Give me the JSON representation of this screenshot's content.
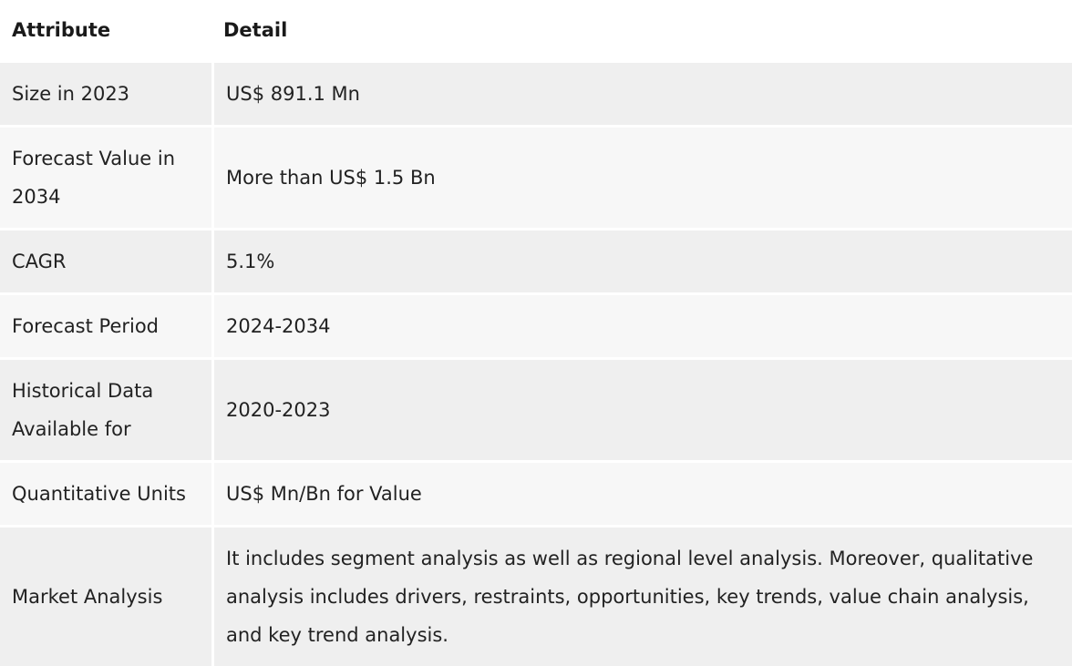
{
  "table": {
    "headers": {
      "attribute": "Attribute",
      "detail": "Detail"
    },
    "rows": [
      {
        "attribute": "Size in 2023",
        "detail": "US$ 891.1 Mn"
      },
      {
        "attribute": "Forecast Value in 2034",
        "detail": "More than US$ 1.5 Bn"
      },
      {
        "attribute": "CAGR",
        "detail": "5.1%"
      },
      {
        "attribute": "Forecast Period",
        "detail": "2024-2034"
      },
      {
        "attribute": "Historical Data Available for",
        "detail": "2020-2023"
      },
      {
        "attribute": "Quantitative Units",
        "detail": "US$ Mn/Bn for Value"
      },
      {
        "attribute": "Market Analysis",
        "detail": "It includes segment analysis as well as regional level analysis. Moreover, qualitative analysis includes drivers, restraints, opportunities, key trends, value chain analysis, and key trend analysis."
      }
    ]
  }
}
